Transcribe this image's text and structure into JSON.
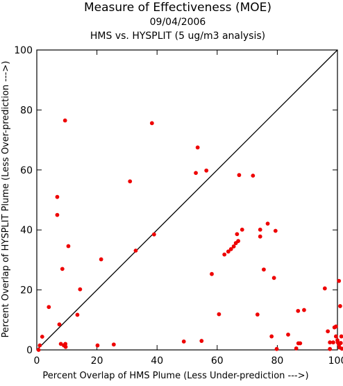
{
  "chart_data": {
    "type": "scatter",
    "title": "Measure of Effectiveness (MOE)",
    "subtitle_date": "09/04/2006",
    "subtitle_analysis": "HMS vs. HYSPLIT  (5 ug/m3 analysis)",
    "xlabel": "Percent Overlap of HMS Plume (Less Under-prediction --->)",
    "ylabel": "Percent Overlap of HYSPLIT Plume (Less Over-prediction --->)",
    "xlim": [
      0,
      100
    ],
    "ylim": [
      0,
      100
    ],
    "xticks": [
      0,
      20,
      40,
      60,
      80,
      100
    ],
    "yticks": [
      0,
      20,
      40,
      60,
      80,
      100
    ],
    "grid": false,
    "reference_line": "diagonal y = x",
    "colors": {
      "points": "#ee0000",
      "axes": "#000000",
      "diagonal": "#000000"
    },
    "points": [
      [
        0.6,
        0.0
      ],
      [
        1.0,
        1.5
      ],
      [
        1.8,
        4.4
      ],
      [
        4.0,
        14.3
      ],
      [
        6.8,
        51.0
      ],
      [
        6.8,
        45.0
      ],
      [
        7.5,
        8.5
      ],
      [
        8.0,
        2.0
      ],
      [
        8.5,
        27.0
      ],
      [
        9.0,
        1.5
      ],
      [
        9.5,
        2.0
      ],
      [
        9.4,
        76.5
      ],
      [
        9.6,
        1.0
      ],
      [
        10.5,
        34.6
      ],
      [
        13.5,
        11.7
      ],
      [
        14.4,
        20.2
      ],
      [
        20.2,
        1.5
      ],
      [
        21.4,
        30.2
      ],
      [
        25.6,
        1.8
      ],
      [
        31.0,
        56.2
      ],
      [
        32.9,
        33.1
      ],
      [
        38.3,
        75.6
      ],
      [
        39.0,
        38.5
      ],
      [
        48.9,
        2.8
      ],
      [
        52.9,
        59.0
      ],
      [
        53.5,
        67.5
      ],
      [
        54.8,
        3.0
      ],
      [
        56.4,
        59.8
      ],
      [
        58.2,
        25.3
      ],
      [
        60.6,
        11.9
      ],
      [
        62.4,
        31.8
      ],
      [
        63.7,
        32.8
      ],
      [
        64.6,
        33.6
      ],
      [
        65.5,
        34.5
      ],
      [
        66.2,
        35.6
      ],
      [
        66.6,
        38.6
      ],
      [
        67.3,
        58.3
      ],
      [
        67.0,
        36.3
      ],
      [
        68.3,
        40.1
      ],
      [
        71.9,
        58.1
      ],
      [
        73.4,
        11.8
      ],
      [
        74.3,
        40.1
      ],
      [
        74.3,
        37.8
      ],
      [
        75.5,
        26.8
      ],
      [
        76.8,
        42.1
      ],
      [
        78.1,
        4.5
      ],
      [
        78.9,
        24.0
      ],
      [
        79.4,
        39.7
      ],
      [
        79.8,
        0.3
      ],
      [
        83.6,
        5.1
      ],
      [
        86.3,
        0.5
      ],
      [
        86.9,
        13.0
      ],
      [
        87.0,
        2.2
      ],
      [
        87.6,
        2.2
      ],
      [
        88.9,
        13.3
      ],
      [
        95.8,
        20.5
      ],
      [
        96.8,
        6.2
      ],
      [
        97.5,
        0.3
      ],
      [
        97.5,
        2.5
      ],
      [
        98.6,
        2.5
      ],
      [
        99.0,
        7.5
      ],
      [
        99.5,
        7.8
      ],
      [
        99.5,
        4.5
      ],
      [
        100.0,
        3.2
      ],
      [
        100.1,
        2.5
      ],
      [
        100.5,
        23.0
      ],
      [
        100.5,
        1.7
      ],
      [
        100.7,
        0.8
      ],
      [
        100.9,
        14.6
      ],
      [
        101.3,
        4.5
      ],
      [
        101.1,
        2.3
      ],
      [
        101.5,
        0.4
      ]
    ]
  }
}
